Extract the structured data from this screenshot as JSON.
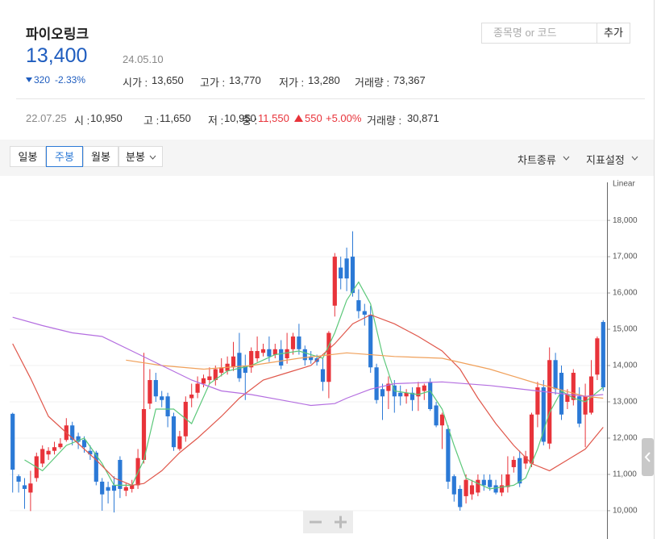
{
  "header": {
    "name": "파이오링크",
    "price": "13,400",
    "date": "24.05.10",
    "change": "320",
    "change_pct": "-2.33%",
    "stats": [
      {
        "label": "시가 :",
        "value": "13,650"
      },
      {
        "label": "고가 :",
        "value": "13,770"
      },
      {
        "label": "저가 :",
        "value": "13,280"
      },
      {
        "label": "거래량 :",
        "value": "73,367"
      }
    ],
    "search_placeholder": "종목명 or 코드",
    "add_button": "추가"
  },
  "detail": {
    "date": "22.07.25",
    "stats": [
      {
        "label": "시 :",
        "value": "10,950"
      },
      {
        "label": "고 :",
        "value": "11,650"
      },
      {
        "label": "저 :",
        "value": "10,950"
      },
      {
        "label": "종 :",
        "value": "11,550"
      }
    ],
    "change": "550",
    "change_pct": "+5.00%",
    "volume_label": "거래량 :",
    "volume": "30,871"
  },
  "toolbar": {
    "periods": [
      "일봉",
      "주봉",
      "월봉",
      "분봉"
    ],
    "selected": 1,
    "chart_type": "차트종류",
    "indicators": "지표설정"
  },
  "chart_data": {
    "type": "candlestick",
    "scale_label": "Linear",
    "up_color": "#e8333a",
    "down_color": "#2b79d6",
    "ylim": [
      9220,
      19070
    ],
    "yticks": [
      {
        "value": 10000,
        "label": "10,000"
      },
      {
        "value": 11000,
        "label": "11,000"
      },
      {
        "value": 12000,
        "label": "12,000"
      },
      {
        "value": 13000,
        "label": "13,000"
      },
      {
        "value": 14000,
        "label": "14,000"
      },
      {
        "value": 15000,
        "label": "15,000"
      },
      {
        "value": 16000,
        "label": "16,000"
      },
      {
        "value": 17000,
        "label": "17,000"
      },
      {
        "value": 18000,
        "label": "18,000"
      }
    ],
    "open": [
      12670,
      10950,
      10700,
      10500,
      10900,
      11300,
      11550,
      11650,
      11750,
      11950,
      12350,
      12050,
      11950,
      11650,
      11600,
      10800,
      10650,
      10700,
      11400,
      10550,
      10600,
      10700,
      11400,
      12950,
      13600,
      13150,
      13150,
      12600,
      11700,
      12050,
      13100,
      13250,
      13500,
      13600,
      13600,
      13800,
      13850,
      13950,
      14350,
      14000,
      13950,
      14200,
      14350,
      14450,
      14300,
      14450,
      14200,
      14450,
      14800,
      14450,
      14250,
      14200,
      13900,
      13550,
      15650,
      16700,
      16950,
      17000,
      15800,
      15500,
      15400,
      13950,
      13350,
      13300,
      13450,
      13250,
      13150,
      13250,
      13150,
      13300,
      13550,
      12900,
      12350,
      12250,
      10950,
      10600,
      10400,
      10450,
      10500,
      10850,
      10850,
      10700,
      10500,
      10650,
      11200,
      11450,
      11300,
      11300,
      12650,
      13400,
      11850,
      14150,
      13800,
      13000,
      13050,
      13150,
      12650,
      12700,
      13750,
      15200
    ],
    "high": [
      12700,
      11000,
      10900,
      11100,
      11600,
      11800,
      11750,
      11900,
      12000,
      12550,
      12450,
      12150,
      12050,
      11800,
      11650,
      10900,
      10800,
      10950,
      11500,
      10750,
      10850,
      11700,
      14350,
      13900,
      13800,
      13300,
      13250,
      12700,
      12200,
      13150,
      13500,
      13700,
      13750,
      13950,
      14000,
      14200,
      14250,
      14650,
      14900,
      14300,
      14500,
      14800,
      14600,
      14800,
      14600,
      14700,
      14900,
      14900,
      15150,
      14550,
      14400,
      14300,
      14200,
      14950,
      17100,
      17000,
      17250,
      17700,
      16100,
      15700,
      15650,
      14050,
      13500,
      13700,
      13600,
      13450,
      13350,
      13400,
      13550,
      13500,
      13650,
      13000,
      12700,
      12350,
      11000,
      10700,
      11000,
      10850,
      11000,
      11000,
      11000,
      10850,
      11000,
      11500,
      11500,
      11650,
      11650,
      12700,
      13550,
      13600,
      14500,
      14350,
      14000,
      13350,
      13900,
      13400,
      13500,
      14150,
      14800,
      15250
    ],
    "low": [
      10500,
      10500,
      10050,
      9990,
      10800,
      11200,
      11400,
      11550,
      11700,
      11900,
      11800,
      11700,
      11600,
      11400,
      10700,
      10000,
      10200,
      9950,
      10350,
      10400,
      10500,
      10600,
      11300,
      12800,
      13000,
      12850,
      12300,
      11650,
      11650,
      11900,
      12850,
      13100,
      13400,
      13500,
      13450,
      13700,
      13750,
      13850,
      13550,
      13050,
      13800,
      14100,
      14250,
      14100,
      14200,
      13900,
      14050,
      14300,
      14300,
      14000,
      14050,
      14000,
      13300,
      13100,
      15350,
      16100,
      16050,
      15900,
      15300,
      15100,
      13800,
      12950,
      12500,
      12800,
      12700,
      12900,
      12950,
      12750,
      12750,
      13050,
      12750,
      12300,
      11700,
      10600,
      10250,
      10000,
      10200,
      10300,
      10400,
      10550,
      10550,
      10450,
      10400,
      10500,
      11050,
      10650,
      11150,
      11200,
      12300,
      11800,
      11700,
      13200,
      12500,
      12800,
      12900,
      12300,
      11750,
      12650,
      13600,
      13300
    ],
    "close": [
      11130,
      10800,
      10600,
      10750,
      11500,
      11700,
      11650,
      11750,
      11850,
      12350,
      11950,
      11900,
      11750,
      11550,
      10800,
      10450,
      10550,
      10550,
      10600,
      10650,
      10700,
      11450,
      12800,
      13600,
      13150,
      13050,
      12600,
      11750,
      12050,
      13000,
      13200,
      13500,
      13650,
      13700,
      13900,
      13950,
      14050,
      14250,
      13650,
      13800,
      14400,
      14400,
      14450,
      14250,
      14450,
      14000,
      14450,
      14800,
      14450,
      14150,
      14150,
      14100,
      13550,
      14900,
      17000,
      16400,
      16400,
      16000,
      15500,
      15400,
      13950,
      13050,
      13150,
      13500,
      13150,
      13150,
      13250,
      13050,
      13400,
      13450,
      12800,
      12350,
      12650,
      10800,
      10450,
      10100,
      10850,
      10700,
      10850,
      10700,
      10650,
      10500,
      10700,
      11000,
      11400,
      10750,
      11500,
      12650,
      13400,
      11900,
      14150,
      13350,
      12650,
      13200,
      13800,
      12400,
      13150,
      13700,
      14750,
      13400
    ],
    "lines": [
      {
        "color": "#5cc87a",
        "x": [
          2,
          5,
          9,
          12,
          15,
          17,
          20,
          22,
          24,
          27,
          30,
          33,
          36,
          40,
          44,
          48,
          52,
          54,
          56,
          58,
          60,
          62,
          64,
          68,
          70,
          72,
          74,
          76,
          80,
          84,
          86,
          88,
          90,
          92,
          94,
          96,
          99
        ],
        "values": [
          11400,
          11100,
          11800,
          12000,
          11300,
          10700,
          10700,
          11400,
          12800,
          12800,
          12400,
          13500,
          13850,
          14000,
          14300,
          14400,
          14200,
          14900,
          15800,
          16300,
          15700,
          14300,
          13300,
          13200,
          13300,
          12800,
          11800,
          10900,
          10600,
          10700,
          10900,
          11700,
          12700,
          13300,
          13100,
          13000,
          13400
        ]
      },
      {
        "color": "#e0574b",
        "x": [
          0,
          3,
          6,
          10,
          14,
          17,
          20,
          22,
          25,
          28,
          31,
          35,
          38,
          42,
          46,
          50,
          54,
          57,
          60,
          64,
          68,
          72,
          75,
          78,
          81,
          84,
          87,
          90,
          93,
          96,
          99
        ],
        "values": [
          14600,
          13650,
          12600,
          12000,
          11400,
          10900,
          10700,
          10750,
          11100,
          11600,
          12000,
          12600,
          13100,
          13600,
          13800,
          14000,
          14600,
          15150,
          15400,
          15150,
          14800,
          14400,
          13900,
          13100,
          12400,
          11800,
          11300,
          11100,
          11400,
          11700,
          12300
        ]
      },
      {
        "color": "#f0a05a",
        "x": [
          19,
          25,
          32,
          40,
          48,
          56,
          64,
          72,
          80,
          88,
          96,
          99
        ],
        "values": [
          14150,
          14000,
          13900,
          14000,
          14200,
          14350,
          14250,
          14200,
          13900,
          13500,
          13150,
          13100
        ]
      },
      {
        "color": "#b46ee0",
        "x": [
          0,
          5,
          10,
          15,
          20,
          25,
          30,
          35,
          40,
          45,
          50,
          54,
          56,
          60,
          64,
          72,
          80,
          88,
          96,
          99
        ],
        "values": [
          15330,
          15100,
          14900,
          14800,
          14400,
          14000,
          13600,
          13300,
          13200,
          13050,
          12900,
          12950,
          13100,
          13350,
          13500,
          13550,
          13450,
          13300,
          13150,
          13200
        ]
      }
    ]
  }
}
